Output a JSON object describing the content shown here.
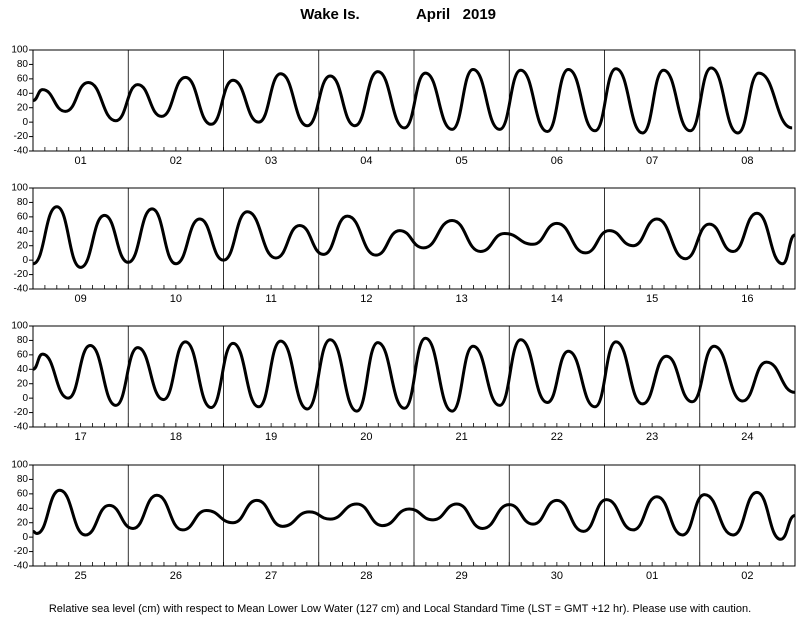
{
  "title_location": "Wake Is.",
  "title_date": "April   2019",
  "footnote": "Relative sea level (cm) with respect to Mean Lower Low Water (127 cm) and Local Standard Time (LST = GMT +12 hr). Please use with caution.",
  "chart_data": [
    {
      "type": "line",
      "xlim": [
        0,
        8
      ],
      "xticks": [
        0,
        1,
        2,
        3,
        4,
        5,
        6,
        7,
        8
      ],
      "ylim": [
        -40,
        100
      ],
      "yticks": [
        -40,
        -20,
        0,
        20,
        40,
        60,
        80,
        100
      ],
      "day_labels": [
        "01",
        "02",
        "03",
        "04",
        "05",
        "06",
        "07",
        "08"
      ],
      "series": [
        {
          "color": "#000000",
          "x": [
            0,
            0.1,
            0.34,
            0.58,
            0.87,
            1.1,
            1.35,
            1.6,
            1.87,
            2.1,
            2.37,
            2.6,
            2.88,
            3.12,
            3.38,
            3.62,
            3.9,
            4.12,
            4.4,
            4.62,
            4.9,
            5.12,
            5.4,
            5.62,
            5.9,
            6.12,
            6.4,
            6.62,
            6.9,
            7.12,
            7.4,
            7.62,
            7.97
          ],
          "values": [
            30,
            45,
            15,
            55,
            2,
            52,
            8,
            62,
            -3,
            58,
            0,
            67,
            -5,
            64,
            -5,
            70,
            -8,
            68,
            -10,
            73,
            -10,
            72,
            -13,
            73,
            -12,
            74,
            -15,
            72,
            -12,
            75,
            -15,
            68,
            -8
          ]
        }
      ]
    },
    {
      "type": "line",
      "xlim": [
        0,
        8
      ],
      "xticks": [
        0,
        1,
        2,
        3,
        4,
        5,
        6,
        7,
        8
      ],
      "ylim": [
        -40,
        100
      ],
      "yticks": [
        -40,
        -20,
        0,
        20,
        40,
        60,
        80,
        100
      ],
      "day_labels": [
        "09",
        "10",
        "11",
        "12",
        "13",
        "14",
        "15",
        "16"
      ],
      "series": [
        {
          "color": "#000000",
          "x": [
            0,
            0.25,
            0.5,
            0.75,
            1.0,
            1.25,
            1.5,
            1.75,
            2.0,
            2.25,
            2.55,
            2.8,
            3.05,
            3.3,
            3.6,
            3.85,
            4.1,
            4.4,
            4.7,
            4.95,
            5.25,
            5.5,
            5.8,
            6.05,
            6.3,
            6.55,
            6.85,
            7.1,
            7.35,
            7.6,
            7.87,
            8
          ],
          "values": [
            -5,
            74,
            -10,
            62,
            -3,
            71,
            -5,
            57,
            0,
            67,
            3,
            48,
            8,
            61,
            7,
            41,
            17,
            55,
            12,
            37,
            22,
            51,
            10,
            41,
            20,
            57,
            2,
            50,
            12,
            65,
            -5,
            35
          ]
        }
      ]
    },
    {
      "type": "line",
      "xlim": [
        0,
        8
      ],
      "xticks": [
        0,
        1,
        2,
        3,
        4,
        5,
        6,
        7,
        8
      ],
      "ylim": [
        -40,
        100
      ],
      "yticks": [
        -40,
        -20,
        0,
        20,
        40,
        60,
        80,
        100
      ],
      "day_labels": [
        "17",
        "18",
        "19",
        "20",
        "21",
        "22",
        "23",
        "24"
      ],
      "series": [
        {
          "color": "#000000",
          "x": [
            0,
            0.1,
            0.37,
            0.6,
            0.87,
            1.1,
            1.37,
            1.6,
            1.87,
            2.1,
            2.37,
            2.6,
            2.88,
            3.12,
            3.4,
            3.62,
            3.9,
            4.12,
            4.4,
            4.62,
            4.9,
            5.12,
            5.4,
            5.62,
            5.9,
            6.12,
            6.4,
            6.65,
            6.92,
            7.15,
            7.45,
            7.7,
            8
          ],
          "values": [
            40,
            61,
            0,
            73,
            -10,
            70,
            -2,
            78,
            -13,
            76,
            -12,
            79,
            -15,
            81,
            -18,
            77,
            -14,
            83,
            -18,
            72,
            -10,
            81,
            -6,
            65,
            -12,
            78,
            -8,
            58,
            -5,
            72,
            -4,
            50,
            8
          ]
        }
      ]
    },
    {
      "type": "line",
      "xlim": [
        0,
        8
      ],
      "xticks": [
        0,
        1,
        2,
        3,
        4,
        5,
        6,
        7,
        8
      ],
      "ylim": [
        -40,
        100
      ],
      "yticks": [
        -40,
        -20,
        0,
        20,
        40,
        60,
        80,
        100
      ],
      "day_labels": [
        "25",
        "26",
        "27",
        "28",
        "29",
        "30",
        "01",
        "02"
      ],
      "series": [
        {
          "color": "#000000",
          "x": [
            0,
            0.04,
            0.28,
            0.55,
            0.8,
            1.05,
            1.3,
            1.57,
            1.82,
            2.1,
            2.35,
            2.62,
            2.9,
            3.12,
            3.4,
            3.67,
            3.95,
            4.2,
            4.45,
            4.72,
            5.0,
            5.25,
            5.5,
            5.78,
            6.02,
            6.3,
            6.55,
            6.82,
            7.05,
            7.35,
            7.6,
            7.85,
            8
          ],
          "values": [
            8,
            5,
            65,
            3,
            44,
            12,
            58,
            10,
            37,
            20,
            51,
            15,
            35,
            25,
            46,
            16,
            39,
            24,
            46,
            12,
            45,
            18,
            51,
            8,
            52,
            10,
            56,
            3,
            59,
            3,
            62,
            -3,
            30
          ]
        }
      ]
    }
  ]
}
